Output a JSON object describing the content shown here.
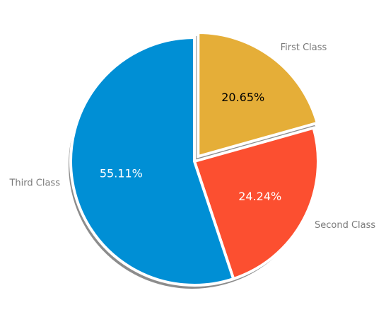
{
  "chart_data": {
    "type": "pie",
    "title": "",
    "slices": [
      {
        "label": "First Class",
        "value": 20.65,
        "value_label": "20.65%",
        "color": "#E5AE38",
        "label_color": "#000000",
        "exploded": true
      },
      {
        "label": "Second Class",
        "value": 24.24,
        "value_label": "24.24%",
        "color": "#FC4F30",
        "label_color": "#ffffff",
        "exploded": false
      },
      {
        "label": "Third Class",
        "value": 55.11,
        "value_label": "55.11%",
        "color": "#008FD5",
        "label_color": "#ffffff",
        "exploded": false
      }
    ],
    "start_angle_deg": 90,
    "direction": "clockwise",
    "shadow": true,
    "legend": "none"
  }
}
